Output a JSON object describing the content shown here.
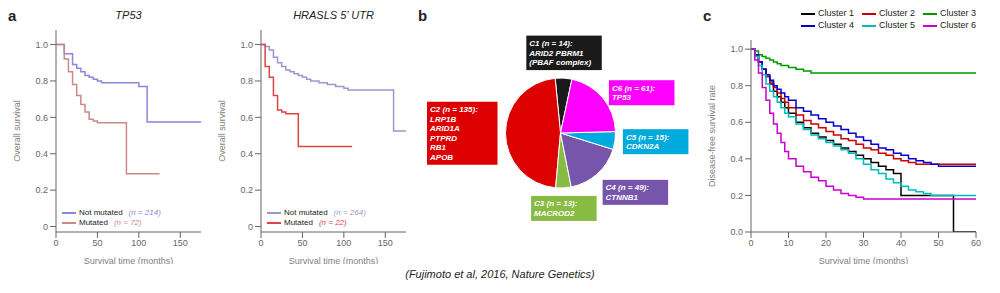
{
  "chart_data": [
    {
      "type": "line",
      "line_style": "step",
      "title": "TP53",
      "xlabel": "Survival time (months)",
      "ylabel": "Overall survival",
      "xlim": [
        0,
        175
      ],
      "xticks": [
        0,
        50,
        100,
        150
      ],
      "ylim": [
        -0.03,
        1.08
      ],
      "yticks": [
        0,
        0.2,
        0.4,
        0.6,
        0.8,
        {
          "value": 1.0,
          "label": "1.0"
        }
      ],
      "legend": "lower left",
      "grid": false,
      "annotations": [
        "a"
      ],
      "series": [
        {
          "name": "Not mutated",
          "color": "#8888dd",
          "annotations": [
            "(n = 214)"
          ],
          "x": [
            0,
            10,
            20,
            25,
            30,
            35,
            40,
            45,
            50,
            55,
            60,
            65,
            70,
            75,
            80,
            85,
            90,
            95,
            100,
            105,
            110,
            115,
            120,
            125,
            130,
            135,
            140,
            145,
            150,
            155,
            160,
            165,
            170,
            175
          ],
          "values": [
            1.0,
            0.95,
            0.89,
            0.87,
            0.85,
            0.83,
            0.82,
            0.81,
            0.8,
            0.79,
            0.79,
            0.79,
            0.79,
            0.79,
            0.79,
            0.79,
            0.79,
            0.79,
            0.77,
            0.77,
            0.575,
            0.575,
            0.575,
            0.575,
            0.575,
            0.575,
            0.575,
            0.575,
            0.575,
            0.575,
            0.575,
            0.575,
            0.575,
            0.575
          ]
        },
        {
          "name": "Mutated",
          "color": "#cc8888",
          "annotations": [
            "(n = 72)"
          ],
          "x": [
            0,
            10,
            15,
            20,
            25,
            30,
            35,
            40,
            45,
            50,
            55,
            60,
            65,
            70,
            75,
            80,
            85,
            90,
            95,
            100,
            105,
            110,
            115,
            120,
            125
          ],
          "values": [
            1.0,
            0.92,
            0.85,
            0.78,
            0.72,
            0.67,
            0.63,
            0.59,
            0.58,
            0.57,
            0.57,
            0.57,
            0.57,
            0.57,
            0.57,
            0.57,
            0.29,
            0.29,
            0.29,
            0.29,
            0.29,
            0.29,
            0.29,
            0.29,
            0.29
          ]
        }
      ]
    },
    {
      "type": "line",
      "line_style": "step",
      "title": "HRASLS 5’ UTR",
      "xlabel": "Survival time (months)",
      "ylabel": "Overall survival",
      "xlim": [
        0,
        175
      ],
      "xticks": [
        0,
        50,
        100,
        150
      ],
      "ylim": [
        -0.03,
        1.08
      ],
      "yticks": [
        0,
        0.2,
        0.4,
        0.6,
        0.8,
        {
          "value": 1.0,
          "label": "1.0"
        }
      ],
      "legend": "lower left",
      "grid": false,
      "series": [
        {
          "name": "Not mutated",
          "color": "#9999cc",
          "annotations": [
            "(n = 264)"
          ],
          "x": [
            0,
            5,
            10,
            15,
            20,
            25,
            30,
            35,
            40,
            45,
            50,
            55,
            60,
            65,
            70,
            75,
            80,
            85,
            90,
            95,
            100,
            105,
            110,
            115,
            120,
            125,
            130,
            135,
            140,
            145,
            150,
            155,
            160,
            165,
            170,
            175
          ],
          "values": [
            1.0,
            0.99,
            0.97,
            0.93,
            0.9,
            0.88,
            0.86,
            0.85,
            0.84,
            0.83,
            0.82,
            0.81,
            0.8,
            0.8,
            0.79,
            0.79,
            0.78,
            0.78,
            0.77,
            0.77,
            0.76,
            0.75,
            0.75,
            0.75,
            0.75,
            0.75,
            0.75,
            0.75,
            0.75,
            0.75,
            0.75,
            0.75,
            0.525,
            0.525,
            0.525,
            0.525
          ]
        },
        {
          "name": "Mutated",
          "color": "#dd4444",
          "annotations": [
            "(n = 22)"
          ],
          "x": [
            0,
            5,
            10,
            15,
            20,
            25,
            30,
            35,
            40,
            45,
            50,
            55,
            60,
            65,
            70,
            75,
            80,
            85,
            90,
            95,
            100,
            105,
            110
          ],
          "values": [
            1.0,
            0.88,
            0.82,
            0.72,
            0.64,
            0.63,
            0.62,
            0.62,
            0.62,
            0.44,
            0.44,
            0.44,
            0.44,
            0.44,
            0.44,
            0.44,
            0.44,
            0.44,
            0.44,
            0.44,
            0.44,
            0.44,
            0.44
          ]
        }
      ]
    },
    {
      "type": "pie",
      "annotations": [
        "b",
        "(Fujimoto et al, 2016, Nature Genetics)"
      ],
      "categories": [
        "C1 (n = 14):\nARID2 PBRM1\n(PBAF complex)",
        "C2 (n = 135):\nLRP1B\nARID1A\nPTPRD\nRB1\nAPOB",
        "C3 (n = 13):\nMACROD2",
        "C4 (n = 49):\nCTNNB1",
        "C5 (n = 15):\nCDKN2A",
        "C6 (n = 61):\nTP53"
      ],
      "values": [
        14,
        135,
        13,
        49,
        15,
        61
      ],
      "colors": [
        "#1a1a1a",
        "#dd0000",
        "#88bb44",
        "#7755aa",
        "#00aadd",
        "#ff00ff"
      ]
    },
    {
      "type": "line",
      "line_style": "step",
      "xlabel": "Survival time (months)",
      "ylabel": "Disease-free survival rate",
      "xlim": [
        0,
        60
      ],
      "xticks": [
        0,
        10,
        20,
        30,
        40,
        50,
        60
      ],
      "ylim": [
        0,
        1.05
      ],
      "yticks": [
        {
          "value": 0,
          "label": "0.0"
        },
        0.2,
        0.4,
        0.6,
        0.8,
        {
          "value": 1.0,
          "label": "1.0"
        }
      ],
      "legend": "upper right",
      "grid": false,
      "annotations": [
        "c"
      ],
      "series": [
        {
          "name": "Cluster 1",
          "color": "#000000",
          "x": [
            0,
            1,
            2,
            3,
            4,
            5,
            6,
            7,
            8,
            9,
            10,
            12,
            14,
            16,
            18,
            20,
            22,
            24,
            26,
            28,
            30,
            32,
            34,
            36,
            38,
            40,
            42,
            44,
            46,
            48,
            50,
            52,
            54,
            56,
            58,
            60
          ],
          "values": [
            1.0,
            0.97,
            0.93,
            0.89,
            0.85,
            0.81,
            0.77,
            0.74,
            0.71,
            0.68,
            0.65,
            0.6,
            0.57,
            0.54,
            0.52,
            0.5,
            0.48,
            0.46,
            0.44,
            0.42,
            0.4,
            0.38,
            0.36,
            0.34,
            0.32,
            0.2,
            0.2,
            0.2,
            0.2,
            0.2,
            0.2,
            0.2,
            0.0,
            0.0,
            0.0,
            0.0
          ]
        },
        {
          "name": "Cluster 2",
          "color": "#cc0000",
          "x": [
            0,
            1,
            2,
            3,
            4,
            5,
            6,
            7,
            8,
            9,
            10,
            12,
            14,
            16,
            18,
            20,
            22,
            24,
            26,
            28,
            30,
            32,
            34,
            36,
            38,
            40,
            42,
            44,
            46,
            48,
            50,
            52,
            54,
            56,
            58,
            60
          ],
          "values": [
            1.0,
            0.97,
            0.93,
            0.89,
            0.85,
            0.82,
            0.79,
            0.76,
            0.73,
            0.71,
            0.68,
            0.64,
            0.61,
            0.59,
            0.57,
            0.55,
            0.53,
            0.51,
            0.5,
            0.48,
            0.46,
            0.45,
            0.43,
            0.42,
            0.4,
            0.39,
            0.38,
            0.37,
            0.37,
            0.37,
            0.37,
            0.37,
            0.37,
            0.37,
            0.37,
            0.37
          ]
        },
        {
          "name": "Cluster 3",
          "color": "#009900",
          "x": [
            0,
            1,
            2,
            3,
            4,
            5,
            6,
            7,
            8,
            10,
            12,
            14,
            16,
            18,
            20,
            25,
            30,
            35,
            40,
            45,
            50,
            55,
            60
          ],
          "values": [
            1.0,
            0.99,
            0.97,
            0.96,
            0.95,
            0.94,
            0.93,
            0.92,
            0.91,
            0.9,
            0.89,
            0.88,
            0.87,
            0.87,
            0.87,
            0.87,
            0.87,
            0.87,
            0.87,
            0.87,
            0.87,
            0.87,
            0.87
          ]
        },
        {
          "name": "Cluster 4",
          "color": "#0000cc",
          "x": [
            0,
            1,
            2,
            3,
            4,
            5,
            6,
            7,
            8,
            9,
            10,
            12,
            14,
            16,
            18,
            20,
            22,
            24,
            26,
            28,
            30,
            32,
            34,
            36,
            38,
            40,
            42,
            44,
            46,
            48,
            50,
            52,
            54,
            56,
            58,
            60
          ],
          "values": [
            1.0,
            0.97,
            0.93,
            0.89,
            0.86,
            0.83,
            0.8,
            0.78,
            0.76,
            0.74,
            0.72,
            0.68,
            0.66,
            0.64,
            0.62,
            0.6,
            0.58,
            0.56,
            0.54,
            0.52,
            0.5,
            0.48,
            0.46,
            0.45,
            0.43,
            0.42,
            0.4,
            0.39,
            0.38,
            0.37,
            0.36,
            0.36,
            0.36,
            0.36,
            0.36,
            0.36
          ]
        },
        {
          "name": "Cluster 5",
          "color": "#00bbbb",
          "x": [
            0,
            1,
            2,
            3,
            4,
            5,
            6,
            7,
            8,
            9,
            10,
            12,
            14,
            16,
            18,
            20,
            22,
            24,
            26,
            28,
            30,
            32,
            34,
            36,
            38,
            40,
            42,
            44,
            46,
            48,
            50,
            52,
            54,
            56,
            58,
            60
          ],
          "values": [
            1.0,
            0.96,
            0.91,
            0.86,
            0.81,
            0.77,
            0.74,
            0.71,
            0.68,
            0.65,
            0.63,
            0.59,
            0.56,
            0.53,
            0.51,
            0.49,
            0.47,
            0.45,
            0.43,
            0.4,
            0.37,
            0.34,
            0.32,
            0.29,
            0.27,
            0.25,
            0.23,
            0.22,
            0.21,
            0.2,
            0.2,
            0.2,
            0.2,
            0.2,
            0.2,
            0.2
          ]
        },
        {
          "name": "Cluster 6",
          "color": "#cc00cc",
          "x": [
            0,
            1,
            2,
            3,
            4,
            5,
            6,
            7,
            8,
            9,
            10,
            12,
            14,
            16,
            18,
            20,
            22,
            24,
            26,
            28,
            30,
            32,
            34,
            36,
            38,
            40,
            42,
            44,
            46,
            48,
            50,
            52,
            54,
            56,
            58,
            60
          ],
          "values": [
            1.0,
            0.94,
            0.87,
            0.79,
            0.72,
            0.65,
            0.59,
            0.54,
            0.49,
            0.44,
            0.4,
            0.36,
            0.33,
            0.3,
            0.28,
            0.25,
            0.23,
            0.21,
            0.2,
            0.19,
            0.18,
            0.18,
            0.18,
            0.18,
            0.18,
            0.18,
            0.18,
            0.18,
            0.18,
            0.18,
            0.18,
            0.18,
            0.18,
            0.18,
            0.18,
            0.18
          ]
        }
      ]
    }
  ]
}
